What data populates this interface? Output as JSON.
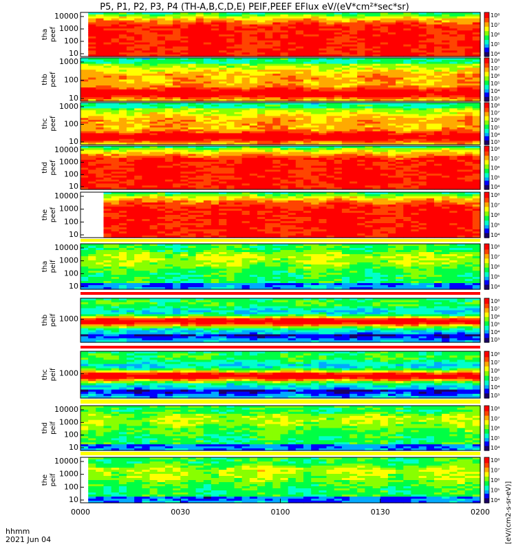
{
  "title": "P5, P1, P2, P3, P4 (TH-A,B,C,D,E) PEIF,PEEF EFlux eV/(eV*cm²*sec*sr)",
  "footer": {
    "axis_label_line1": "hhmm",
    "axis_label_line2": "2021 Jun 04"
  },
  "colorbar_unit_label": "[eV/(cm2-s-sr-eV)]",
  "colors": {
    "palette": [
      "#1a0066",
      "#0000ff",
      "#00aaff",
      "#00ffcc",
      "#00ff44",
      "#88ff00",
      "#ffff00",
      "#ffaa00",
      "#ff4400",
      "#ff0000"
    ],
    "background": "#ffffff",
    "separator_red": "#ff0000",
    "separator_yellow": "#ffff00"
  },
  "chart_data": {
    "type": "heatmap",
    "x_ticks": [
      "0000",
      "0030",
      "0100",
      "0130",
      "0200"
    ],
    "panels": [
      {
        "probe": "tha",
        "species": "peef",
        "ylabel": "tha\npeef",
        "yticks": [
          "10000",
          "1000",
          "100",
          "10"
        ],
        "cbar_ticks": [
          "10⁸",
          "10⁷",
          "10⁶",
          "10⁵",
          "10⁴"
        ],
        "profile": "e_hot",
        "gap_frac": 0.032
      },
      {
        "probe": "thb",
        "species": "peef",
        "ylabel": "thb\npeef",
        "yticks": [
          "1000",
          "100",
          "10"
        ],
        "cbar_ticks": [
          "10⁸",
          "10⁷",
          "10⁶",
          "10⁵",
          "10⁴",
          "10³"
        ],
        "profile": "e_band",
        "gap_frac": 0
      },
      {
        "probe": "thc",
        "species": "peef",
        "ylabel": "thc\npeef",
        "yticks": [
          "1000",
          "100",
          "10"
        ],
        "cbar_ticks": [
          "10⁸",
          "10⁷",
          "10⁶",
          "10⁵",
          "10⁴",
          "10³"
        ],
        "profile": "e_band",
        "gap_frac": 0
      },
      {
        "probe": "thd",
        "species": "peef",
        "ylabel": "thd\npeef",
        "yticks": [
          "10000",
          "1000",
          "100",
          "10"
        ],
        "cbar_ticks": [
          "10⁸",
          "10⁷",
          "10⁶",
          "10⁵",
          "10⁴"
        ],
        "profile": "e_hot",
        "gap_frac": 0.01
      },
      {
        "probe": "the",
        "species": "peef",
        "ylabel": "the\npeef",
        "yticks": [
          "10000",
          "1000",
          "100",
          "10"
        ],
        "cbar_ticks": [
          "10⁸",
          "10⁷",
          "10⁶",
          "10⁵",
          "10⁴"
        ],
        "profile": "e_hot",
        "gap_frac": 0.058
      },
      {
        "probe": "tha",
        "species": "peif",
        "ylabel": "tha\npeif",
        "yticks": [
          "10000",
          "1000",
          "100",
          "10"
        ],
        "cbar_ticks": [
          "10⁸",
          "10⁷",
          "10⁶",
          "10⁵",
          "10⁴"
        ],
        "profile": "i_green",
        "gap_frac": 0
      },
      {
        "probe": "thb",
        "species": "peif",
        "ylabel": "thb\npeif",
        "yticks": [
          "1000"
        ],
        "cbar_ticks": [
          "10⁸",
          "10⁷",
          "10⁶",
          "10⁵",
          "10⁴",
          "10³"
        ],
        "profile": "i_band",
        "gap_frac": 0
      },
      {
        "probe": "thc",
        "species": "peif",
        "ylabel": "thc\npeif",
        "yticks": [
          "1000"
        ],
        "cbar_ticks": [
          "10⁸",
          "10⁷",
          "10⁶",
          "10⁵",
          "10⁴",
          "10³"
        ],
        "profile": "i_band",
        "gap_frac": 0
      },
      {
        "probe": "thd",
        "species": "peif",
        "ylabel": "thd\npeif",
        "yticks": [
          "10000",
          "1000",
          "100",
          "10"
        ],
        "cbar_ticks": [
          "10⁸",
          "10⁷",
          "10⁶",
          "10⁵",
          "10⁴"
        ],
        "profile": "i_green",
        "gap_frac": 0.01
      },
      {
        "probe": "the",
        "species": "peif",
        "ylabel": "the\npeif",
        "yticks": [
          "10000",
          "1000",
          "100",
          "10"
        ],
        "cbar_ticks": [
          "10⁸",
          "10⁷",
          "10⁶",
          "10⁵",
          "10⁴"
        ],
        "profile": "i_green",
        "gap_frac": 0.035
      }
    ]
  }
}
